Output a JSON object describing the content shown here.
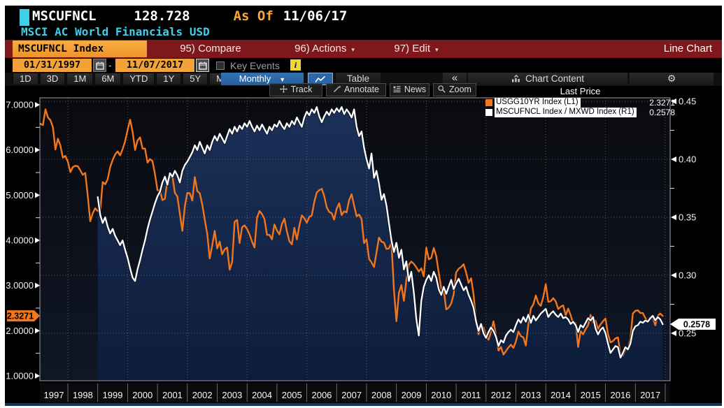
{
  "titlebar": {
    "ticker": "MSCUFNCL",
    "last_value": "128.728",
    "as_of_label": "As Of",
    "as_of_date": "11/06/17",
    "description": "MSCI AC World Financials USD",
    "panel_indicator_color": "#3ed0e8"
  },
  "menubar": {
    "security_tab": "MSCUFNCL Index",
    "items": [
      {
        "label": "95) Compare",
        "has_dropdown": false
      },
      {
        "label": "96) Actions",
        "has_dropdown": true
      },
      {
        "label": "97) Edit",
        "has_dropdown": true
      }
    ],
    "dropdown_arrow": "▾",
    "right_label": "Line Chart"
  },
  "date_row": {
    "start_date": "01/31/1997",
    "separator": "-",
    "end_date": "11/07/2017",
    "key_events_label": "Key Events",
    "key_events_checked": false,
    "info_icon": "i"
  },
  "period_row": {
    "ranges": [
      "1D",
      "3D",
      "1M",
      "6M",
      "YTD",
      "1Y",
      "5Y",
      "Max"
    ],
    "frequency": "Monthly",
    "dropdown_arrow": "▼",
    "table_label": "Table",
    "collapse_label": "«",
    "chart_content_label": "Chart Content"
  },
  "chart_toolbar": [
    {
      "icon": "track-crosshair-icon",
      "label": "Track"
    },
    {
      "icon": "annotate-pencil-icon",
      "label": "Annotate"
    },
    {
      "icon": "news-lines-icon",
      "label": "News"
    },
    {
      "icon": "zoom-magnifier-icon",
      "label": "Zoom"
    }
  ],
  "legend": {
    "title": "Last Price",
    "series": [
      {
        "swatch_color": "#f2761b",
        "label": "USGG10YR Index  (L1)",
        "value": "2.3271"
      },
      {
        "swatch_color": "#ffffff",
        "label": "MSCUFNCL Index / MXWD Index  (R1)",
        "value": "0.2578"
      }
    ]
  },
  "chart_data": {
    "type": "line",
    "title": "MSCUFNCL Index / MXWD Index vs USGG10YR Index, monthly, 01/31/1997 - 11/07/2017",
    "x_axis": {
      "tick_years": [
        1997,
        1998,
        1999,
        2000,
        2001,
        2002,
        2003,
        2004,
        2005,
        2006,
        2007,
        2008,
        2009,
        2010,
        2011,
        2012,
        2013,
        2014,
        2015,
        2016,
        2017
      ],
      "gridline_years": [
        1998,
        2000,
        2002,
        2004,
        2006,
        2008,
        2010,
        2012,
        2014,
        2016,
        2018
      ]
    },
    "left_axis": {
      "ticks": [
        "7.0000",
        "6.0000",
        "5.0000",
        "4.0000",
        "3.0000",
        "2.0000",
        "1.0000"
      ],
      "range": [
        1.0,
        7.0
      ],
      "marker": {
        "value": "2.3271",
        "color": "#f2761b",
        "text_color": "#000000"
      }
    },
    "right_axis": {
      "ticks": [
        "0.45",
        "0.40",
        "0.35",
        "0.30",
        "0.25"
      ],
      "range": [
        0.25,
        0.45
      ],
      "gridlines": [
        0.45,
        0.4,
        0.35,
        0.3,
        0.25
      ],
      "marker": {
        "value": "0.2578",
        "color": "#ffffff",
        "text_color": "#000000"
      }
    },
    "series": [
      {
        "name": "USGG10YR Index",
        "axis": "L1",
        "color": "#f2761b",
        "fill": false,
        "start": "1997-01",
        "frequency": "monthly",
        "values": [
          6.58,
          6.55,
          6.9,
          6.72,
          6.66,
          6.5,
          6.01,
          6.25,
          6.1,
          5.83,
          5.87,
          5.74,
          5.51,
          5.62,
          5.65,
          5.64,
          5.55,
          5.45,
          5.49,
          4.98,
          4.42,
          4.6,
          4.71,
          4.65,
          4.65,
          5.29,
          5.24,
          5.35,
          5.62,
          5.78,
          5.9,
          5.97,
          5.88,
          6.02,
          6.19,
          6.44,
          6.67,
          6.41,
          6.0,
          6.21,
          6.28,
          6.03,
          6.03,
          5.72,
          5.8,
          5.75,
          5.47,
          5.11,
          5.1,
          4.89,
          4.92,
          5.34,
          5.39,
          5.42,
          5.05,
          4.97,
          4.59,
          4.21,
          4.75,
          5.05,
          5.04,
          4.88,
          5.4,
          5.09,
          5.04,
          4.8,
          4.46,
          4.14,
          3.6,
          3.89,
          4.21,
          3.82,
          3.97,
          3.69,
          3.8,
          3.84,
          3.35,
          3.52,
          4.41,
          4.45,
          3.94,
          4.29,
          4.33,
          4.25,
          4.13,
          3.97,
          3.84,
          4.5,
          4.65,
          4.58,
          4.47,
          4.12,
          4.12,
          4.02,
          4.35,
          4.22,
          4.13,
          4.36,
          4.48,
          4.2,
          3.98,
          3.91,
          4.28,
          4.02,
          4.32,
          4.55,
          4.49,
          4.39,
          4.52,
          4.55,
          4.85,
          5.06,
          5.11,
          5.14,
          4.98,
          4.73,
          4.63,
          4.6,
          4.46,
          4.7,
          4.82,
          4.56,
          4.64,
          4.62,
          4.89,
          5.02,
          4.77,
          4.53,
          4.57,
          4.47,
          3.94,
          4.02,
          3.59,
          3.51,
          3.41,
          3.73,
          4.06,
          3.97,
          3.95,
          3.81,
          3.82,
          3.95,
          2.92,
          2.21,
          2.84,
          3.01,
          2.66,
          3.12,
          3.46,
          3.53,
          3.48,
          3.4,
          3.31,
          3.38,
          3.2,
          3.84,
          3.58,
          3.61,
          3.83,
          3.65,
          3.29,
          2.93,
          2.91,
          2.47,
          2.51,
          2.6,
          2.8,
          3.29,
          3.37,
          3.41,
          3.47,
          3.29,
          3.06,
          3.16,
          2.8,
          2.22,
          1.92,
          2.11,
          2.07,
          1.88,
          1.8,
          1.97,
          2.21,
          1.91,
          1.56,
          1.64,
          1.47,
          1.55,
          1.63,
          1.69,
          1.62,
          1.76,
          1.98,
          1.88,
          1.85,
          1.67,
          2.13,
          2.49,
          2.58,
          2.78,
          2.61,
          2.55,
          2.74,
          3.03,
          2.64,
          2.65,
          2.72,
          2.65,
          2.48,
          2.53,
          2.56,
          2.34,
          2.49,
          2.34,
          2.16,
          2.17,
          1.64,
          1.99,
          1.92,
          2.03,
          2.12,
          2.35,
          2.18,
          2.22,
          2.04,
          2.14,
          2.21,
          2.27,
          1.92,
          1.74,
          1.77,
          1.83,
          1.85,
          1.47,
          1.45,
          1.58,
          1.59,
          1.83,
          2.38,
          2.44,
          2.45,
          2.39,
          2.39,
          2.28,
          2.2,
          2.3,
          2.29,
          2.12,
          2.33,
          2.38,
          2.3271
        ]
      },
      {
        "name": "MSCUFNCL Index / MXWD Index",
        "axis": "R1",
        "color": "#ffffff",
        "fill": true,
        "fill_color_top": "#1b3058",
        "fill_color_bottom": "#0d1c3a",
        "start": "1998-12",
        "frequency": "monthly",
        "values": [
          0.3675,
          0.352,
          0.345,
          0.35,
          0.342,
          0.336,
          0.34,
          0.334,
          0.33,
          0.326,
          0.33,
          0.322,
          0.315,
          0.306,
          0.298,
          0.295,
          0.305,
          0.313,
          0.322,
          0.33,
          0.34,
          0.348,
          0.355,
          0.362,
          0.368,
          0.372,
          0.38,
          0.385,
          0.378,
          0.388,
          0.385,
          0.39,
          0.386,
          0.38,
          0.39,
          0.395,
          0.398,
          0.402,
          0.406,
          0.412,
          0.408,
          0.415,
          0.41,
          0.405,
          0.412,
          0.408,
          0.415,
          0.42,
          0.416,
          0.422,
          0.418,
          0.414,
          0.42,
          0.426,
          0.422,
          0.428,
          0.424,
          0.429,
          0.426,
          0.431,
          0.428,
          0.433,
          0.428,
          0.424,
          0.429,
          0.425,
          0.43,
          0.426,
          0.422,
          0.428,
          0.425,
          0.43,
          0.428,
          0.433,
          0.429,
          0.426,
          0.431,
          0.428,
          0.433,
          0.43,
          0.436,
          0.432,
          0.428,
          0.436,
          0.441,
          0.438,
          0.443,
          0.44,
          0.445,
          0.437,
          0.432,
          0.437,
          0.441,
          0.438,
          0.443,
          0.44,
          0.444,
          0.441,
          0.445,
          0.439,
          0.443,
          0.44,
          0.436,
          0.443,
          0.428,
          0.42,
          0.424,
          0.41,
          0.4,
          0.392,
          0.405,
          0.384,
          0.39,
          0.379,
          0.365,
          0.37,
          0.36,
          0.345,
          0.33,
          0.32,
          0.328,
          0.315,
          0.322,
          0.305,
          0.312,
          0.295,
          0.303,
          0.285,
          0.262,
          0.248,
          0.278,
          0.29,
          0.296,
          0.3,
          0.295,
          0.303,
          0.298,
          0.288,
          0.283,
          0.29,
          0.284,
          0.29,
          0.296,
          0.288,
          0.293,
          0.297,
          0.292,
          0.287,
          0.29,
          0.283,
          0.278,
          0.272,
          0.26,
          0.252,
          0.258,
          0.25,
          0.246,
          0.251,
          0.255,
          0.252,
          0.247,
          0.239,
          0.244,
          0.242,
          0.248,
          0.251,
          0.253,
          0.251,
          0.257,
          0.262,
          0.259,
          0.264,
          0.26,
          0.266,
          0.259,
          0.265,
          0.261,
          0.264,
          0.267,
          0.269,
          0.271,
          0.264,
          0.267,
          0.269,
          0.266,
          0.264,
          0.267,
          0.263,
          0.264,
          0.262,
          0.258,
          0.26,
          0.257,
          0.251,
          0.257,
          0.255,
          0.259,
          0.263,
          0.261,
          0.264,
          0.254,
          0.249,
          0.253,
          0.255,
          0.25,
          0.241,
          0.233,
          0.236,
          0.239,
          0.238,
          0.229,
          0.233,
          0.238,
          0.236,
          0.241,
          0.252,
          0.256,
          0.257,
          0.26,
          0.259,
          0.261,
          0.26,
          0.263,
          0.265,
          0.261,
          0.264,
          0.262,
          0.2578
        ]
      }
    ],
    "grid": {
      "style": "dotted",
      "color": "#ffffff"
    }
  }
}
